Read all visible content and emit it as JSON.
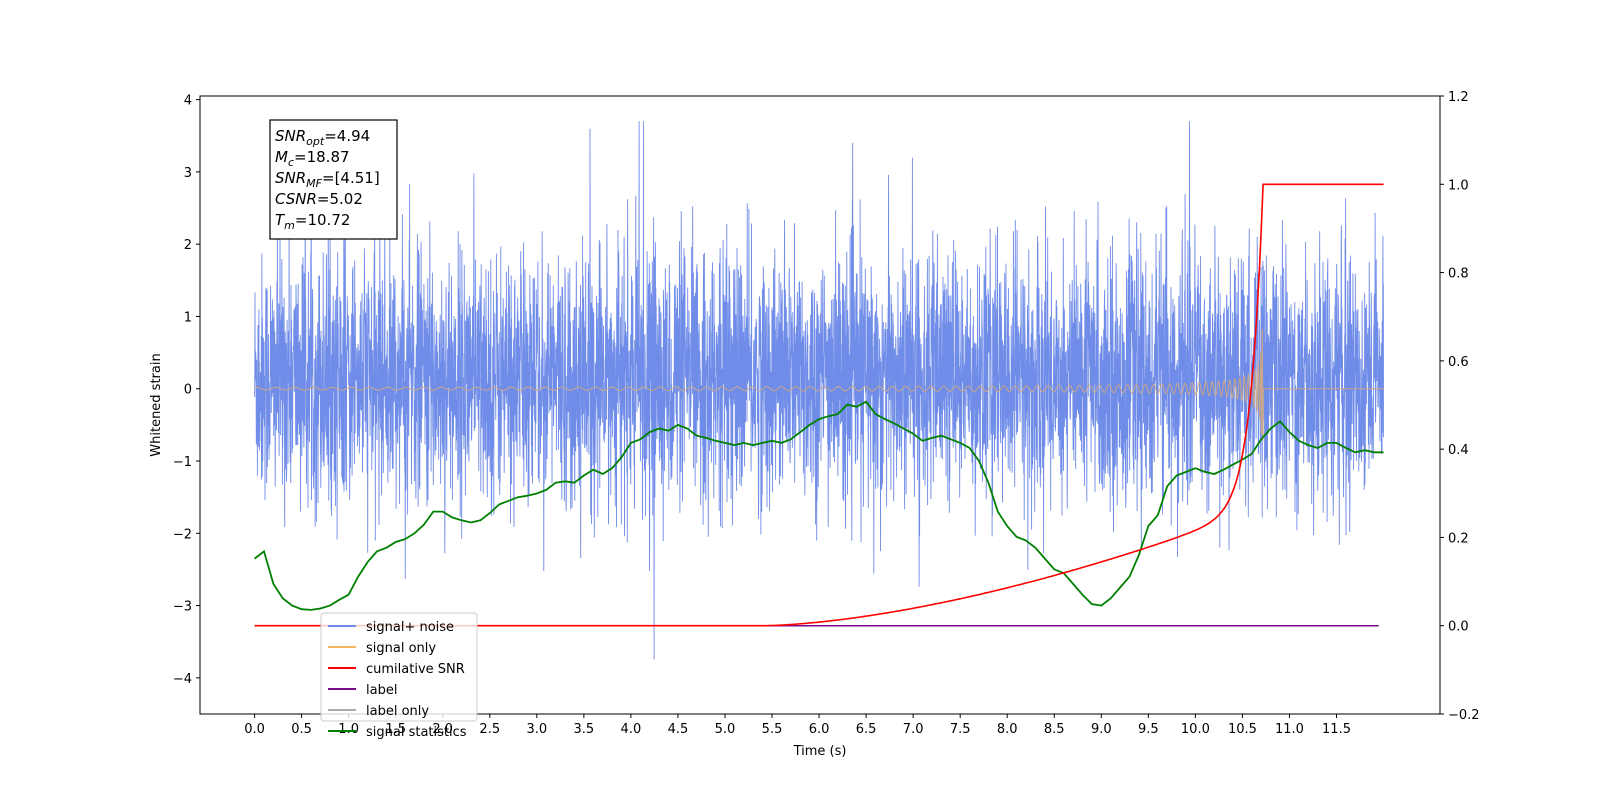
{
  "chart_data": {
    "type": "line",
    "xlabel": "Time (s)",
    "ylabel": "Whitened strain",
    "xlim": [
      -0.58,
      12.6
    ],
    "ylim": [
      -4.5,
      4.05
    ],
    "y2lim": [
      -0.2,
      1.2
    ],
    "x_ticks": [
      "0.0",
      "0.5",
      "1.0",
      "1.5",
      "2.0",
      "2.5",
      "3.0",
      "3.5",
      "4.0",
      "4.5",
      "5.0",
      "5.5",
      "6.0",
      "6.5",
      "7.0",
      "7.5",
      "8.0",
      "8.5",
      "9.0",
      "9.5",
      "10.0",
      "10.5",
      "11.0",
      "11.5"
    ],
    "y_ticks": [
      "4",
      "3",
      "2",
      "1",
      "0",
      "−1",
      "−2",
      "−3",
      "−4"
    ],
    "y2_ticks": [
      "1.2",
      "1.0",
      "0.8",
      "0.6",
      "0.4",
      "0.2",
      "0.0",
      "−0.2"
    ],
    "grid": false,
    "legend_position": "lower-left",
    "annotation": [
      {
        "sym": "SNR",
        "sub": "opt",
        "value": "=4.94"
      },
      {
        "sym": "M",
        "sub": "c",
        "value": "=18.87"
      },
      {
        "sym": "SNR",
        "sub": "MF",
        "value": "=[4.51]"
      },
      {
        "sym": "CSNR",
        "sub": "",
        "value": "=5.02"
      },
      {
        "sym": "T",
        "sub": "m",
        "value": "=10.72"
      }
    ],
    "series": [
      {
        "name": "signal+ noise",
        "axis": "left",
        "color": "#6f8ce8",
        "description": "whitened noise, std approx 0.85, x 0 to 12"
      },
      {
        "name": "signal only",
        "axis": "left",
        "color": "#f5b663",
        "description": "chirp, amplitude peaks about 0.9 at 10.72 then zero"
      },
      {
        "name": "cumilative SNR",
        "axis": "right",
        "x": [
          0,
          5.5,
          6.0,
          6.5,
          7.0,
          7.5,
          8.0,
          8.5,
          9.0,
          9.5,
          10.0,
          10.3,
          10.5,
          10.6,
          10.65,
          10.7,
          10.72,
          12.0
        ],
        "y": [
          0,
          0,
          0.002,
          0.015,
          0.04,
          0.07,
          0.095,
          0.125,
          0.16,
          0.205,
          0.26,
          0.32,
          0.43,
          0.53,
          0.66,
          0.85,
          1.0,
          1.0
        ]
      },
      {
        "name": "label",
        "axis": "right",
        "x": [
          0,
          12.0
        ],
        "y": [
          0,
          0
        ]
      },
      {
        "name": "label only",
        "axis": "right",
        "color": "#aaaaaa"
      },
      {
        "name": "signal statistics",
        "axis": "left",
        "x": [
          0,
          0.1,
          0.2,
          0.3,
          0.4,
          0.5,
          0.6,
          0.7,
          0.8,
          0.9,
          1.0,
          1.1,
          1.2,
          1.3,
          1.4,
          1.5,
          1.6,
          1.7,
          1.8,
          1.9,
          2.0,
          2.1,
          2.2,
          2.3,
          2.4,
          2.5,
          2.6,
          2.7,
          2.8,
          2.9,
          3.0,
          3.1,
          3.2,
          3.3,
          3.4,
          3.5,
          3.6,
          3.7,
          3.8,
          3.9,
          4.0,
          4.1,
          4.2,
          4.3,
          4.4,
          4.5,
          4.6,
          4.7,
          4.8,
          4.9,
          5.0,
          5.1,
          5.2,
          5.3,
          5.4,
          5.5,
          5.6,
          5.7,
          5.8,
          5.9,
          6.0,
          6.1,
          6.2,
          6.3,
          6.4,
          6.5,
          6.6,
          6.7,
          6.8,
          6.9,
          7.0,
          7.1,
          7.2,
          7.3,
          7.4,
          7.5,
          7.6,
          7.7,
          7.8,
          7.9,
          8.0,
          8.1,
          8.2,
          8.3,
          8.4,
          8.5,
          8.6,
          8.7,
          8.8,
          8.9,
          9.0,
          9.1,
          9.2,
          9.3,
          9.4,
          9.5,
          9.6,
          9.7,
          9.8,
          9.9,
          10.0,
          10.1,
          10.2,
          10.3,
          10.4,
          10.5,
          10.6,
          10.7,
          10.8,
          10.9,
          11.0,
          11.1,
          11.2,
          11.3,
          11.4,
          11.5,
          11.6,
          11.7,
          11.8,
          11.9,
          12.0
        ],
        "y": [
          -2.35,
          -2.25,
          -2.7,
          -2.9,
          -3.0,
          -3.05,
          -3.06,
          -3.04,
          -3.0,
          -2.92,
          -2.85,
          -2.6,
          -2.4,
          -2.25,
          -2.2,
          -2.12,
          -2.08,
          -2.0,
          -1.88,
          -1.7,
          -1.7,
          -1.78,
          -1.82,
          -1.85,
          -1.82,
          -1.72,
          -1.6,
          -1.55,
          -1.5,
          -1.48,
          -1.45,
          -1.4,
          -1.3,
          -1.28,
          -1.3,
          -1.2,
          -1.12,
          -1.18,
          -1.1,
          -0.95,
          -0.75,
          -0.7,
          -0.6,
          -0.55,
          -0.58,
          -0.5,
          -0.55,
          -0.65,
          -0.68,
          -0.72,
          -0.75,
          -0.78,
          -0.75,
          -0.78,
          -0.75,
          -0.72,
          -0.75,
          -0.7,
          -0.6,
          -0.5,
          -0.42,
          -0.38,
          -0.35,
          -0.22,
          -0.25,
          -0.18,
          -0.35,
          -0.42,
          -0.48,
          -0.55,
          -0.62,
          -0.72,
          -0.68,
          -0.65,
          -0.7,
          -0.75,
          -0.82,
          -1.0,
          -1.3,
          -1.7,
          -1.9,
          -2.05,
          -2.1,
          -2.2,
          -2.35,
          -2.5,
          -2.55,
          -2.7,
          -2.85,
          -2.98,
          -3.0,
          -2.9,
          -2.75,
          -2.6,
          -2.3,
          -1.9,
          -1.75,
          -1.35,
          -1.2,
          -1.15,
          -1.1,
          -1.15,
          -1.18,
          -1.12,
          -1.05,
          -0.98,
          -0.9,
          -0.7,
          -0.55,
          -0.45,
          -0.6,
          -0.72,
          -0.78,
          -0.82,
          -0.75,
          -0.75,
          -0.82,
          -0.88,
          -0.85,
          -0.88,
          -0.88
        ]
      }
    ]
  },
  "colors": {
    "noise": "#6f8ce8",
    "signal": "#f5b663",
    "signal_overlay": "#c8a68a",
    "cumsnr": "#ff0000",
    "label": "#7b0a8a",
    "stats": "#008000"
  }
}
